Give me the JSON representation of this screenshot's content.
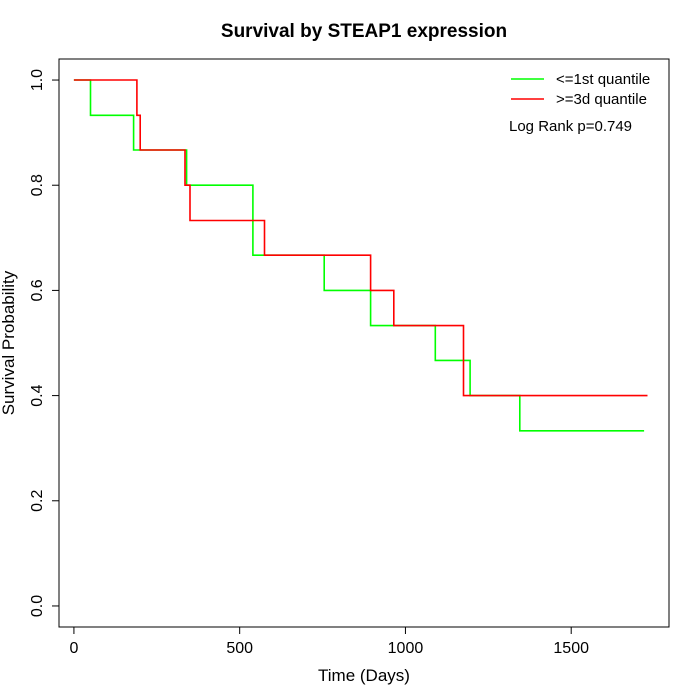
{
  "chart_data": {
    "type": "line",
    "step": true,
    "title": "Survival by STEAP1 expression",
    "xlabel": "Time (Days)",
    "ylabel": "Survival Probability",
    "xlim": [
      -45,
      1795
    ],
    "ylim": [
      -0.04,
      1.04
    ],
    "xticks": [
      0,
      500,
      1000,
      1500
    ],
    "yticks": [
      0.0,
      0.2,
      0.4,
      0.6,
      0.8,
      1.0
    ],
    "xtick_labels": [
      "0",
      "500",
      "1000",
      "1500"
    ],
    "ytick_labels": [
      "0.0",
      "0.2",
      "0.4",
      "0.6",
      "0.8",
      "1.0"
    ],
    "grid": false,
    "legend_position": "top-right",
    "annotation": "Log Rank p=0.749",
    "series": [
      {
        "name": "<=1st quantile",
        "color": "#00ff00",
        "x": [
          0,
          50,
          180,
          340,
          540,
          755,
          895,
          1090,
          1195,
          1345,
          1720
        ],
        "y": [
          1.0,
          0.933,
          0.867,
          0.8,
          0.667,
          0.6,
          0.533,
          0.467,
          0.4,
          0.333,
          0.333
        ]
      },
      {
        "name": ">=3d quantile",
        "color": "#ff0000",
        "x": [
          0,
          190,
          200,
          335,
          350,
          575,
          895,
          965,
          1175,
          1730
        ],
        "y": [
          1.0,
          0.933,
          0.867,
          0.8,
          0.733,
          0.667,
          0.6,
          0.533,
          0.4,
          0.4
        ]
      }
    ]
  }
}
